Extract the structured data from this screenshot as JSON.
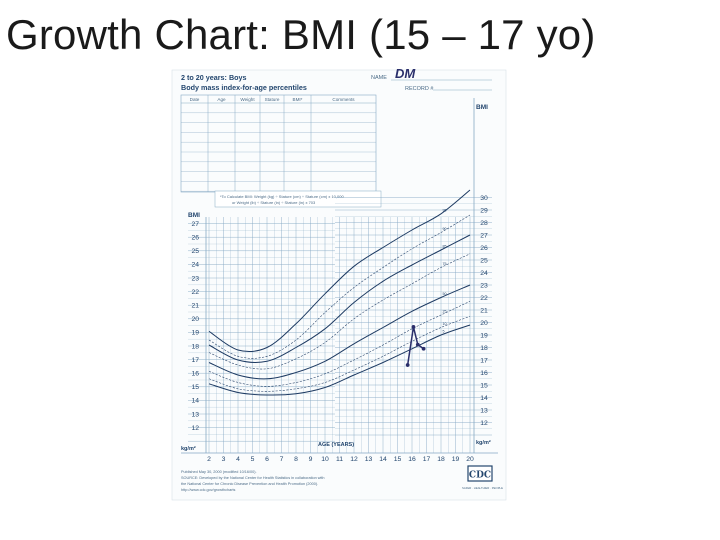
{
  "slide": {
    "title": "Growth Chart: BMI (15 – 17 yo)"
  },
  "sheet": {
    "title_line1": "2 to 20 years: Boys",
    "title_line2": "Body mass index-for-age percentiles",
    "name_label": "NAME",
    "name_value": "DM",
    "record_label": "RECORD #",
    "table_headers": [
      "Date",
      "Age",
      "Weight",
      "Stature",
      "BMI*",
      "Comments"
    ],
    "formula_line1": "*To Calculate BMI: Weight (kg) ÷ Stature (cm) ÷ Stature (cm) x 10,000",
    "formula_line2": "or Weight (lb) ÷ Stature (in) ÷ Stature (in) x 703",
    "bmi_axis_label": "BMI",
    "unit_label": "kg/m²",
    "age_axis_label": "AGE (YEARS)",
    "footer_line1": "Published May 30, 2000 (modified 10/16/00).",
    "footer_line2": "SOURCE: Developed by the National Center for Health Statistics in collaboration with",
    "footer_line3": "the National Center for Chronic Disease Prevention and Health Promotion (2000).",
    "footer_line4": "http://www.cdc.gov/growthcharts",
    "logo_text": "CDC",
    "logo_caption": "SAFER · HEALTHIER · PEOPLE"
  },
  "chart_data": {
    "type": "line",
    "xlabel": "AGE (YEARS)",
    "ylabel": "BMI",
    "xlim": [
      2,
      20
    ],
    "ylim_left": [
      11,
      27
    ],
    "ylim_right": [
      11,
      30
    ],
    "x_ticks": [
      2,
      3,
      4,
      5,
      6,
      7,
      8,
      9,
      10,
      11,
      12,
      13,
      14,
      15,
      16,
      17,
      18,
      19,
      20
    ],
    "y_ticks_left": [
      12,
      13,
      14,
      15,
      16,
      17,
      18,
      19,
      20,
      21,
      22,
      23,
      24,
      25,
      26,
      27
    ],
    "y_ticks_right": [
      12,
      13,
      14,
      15,
      16,
      17,
      18,
      19,
      20,
      21,
      22,
      23,
      24,
      25,
      26,
      27,
      28,
      29,
      30
    ],
    "ages": [
      2,
      4,
      6,
      8,
      10,
      12,
      14,
      16,
      18,
      20
    ],
    "series": [
      {
        "name": "95",
        "values": [
          19.3,
          17.8,
          18.0,
          19.9,
          22.3,
          24.5,
          26.0,
          27.4,
          28.7,
          30.6
        ]
      },
      {
        "name": "90",
        "values": [
          18.6,
          17.3,
          17.3,
          18.6,
          20.8,
          22.8,
          24.4,
          25.9,
          27.2,
          28.6
        ]
      },
      {
        "name": "85",
        "values": [
          18.2,
          17.0,
          16.9,
          18.0,
          19.5,
          21.6,
          23.3,
          24.6,
          25.8,
          27.0
        ]
      },
      {
        "name": "75",
        "values": [
          17.6,
          16.6,
          16.3,
          17.1,
          18.4,
          20.3,
          21.8,
          23.1,
          24.4,
          25.5
        ]
      },
      {
        "name": "50",
        "values": [
          16.8,
          15.8,
          15.5,
          16.0,
          16.9,
          18.3,
          19.6,
          20.9,
          22.0,
          23.0
        ]
      },
      {
        "name": "25",
        "values": [
          16.1,
          15.2,
          14.9,
          15.2,
          15.9,
          17.0,
          18.2,
          19.5,
          20.6,
          21.7
        ]
      },
      {
        "name": "10",
        "values": [
          15.5,
          14.7,
          14.5,
          14.7,
          15.2,
          16.2,
          17.3,
          18.5,
          19.6,
          20.5
        ]
      },
      {
        "name": "5",
        "values": [
          15.1,
          14.4,
          14.2,
          14.3,
          14.8,
          15.8,
          16.8,
          17.9,
          19.0,
          19.8
        ]
      }
    ],
    "patient": {
      "name": "DM",
      "points": [
        {
          "age": 15.7,
          "bmi": 16.6
        },
        {
          "age": 16.1,
          "bmi": 19.4
        },
        {
          "age": 16.4,
          "bmi": 18.1
        },
        {
          "age": 16.8,
          "bmi": 17.8
        }
      ]
    },
    "colors": {
      "grid": "#86a9c4",
      "curves": "#1d3a62",
      "ink": "#2a2f6b",
      "labels": "#23466e"
    }
  }
}
